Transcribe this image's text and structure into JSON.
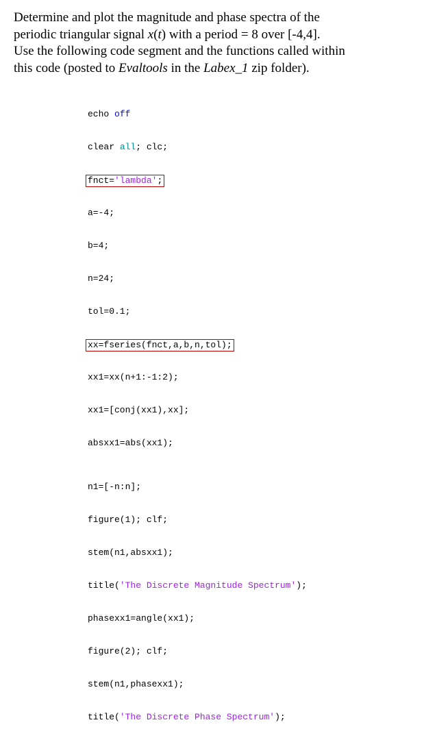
{
  "instructions": {
    "line1a": "Determine and plot the magnitude and phase spectra of the",
    "line2a": "periodic triangular signal ",
    "signal": "x",
    "line2b": "(",
    "tvar": "t",
    "line2c": ") with a period = 8 over [-4,4].",
    "line3a": "Use the following code segment and the functions called within",
    "line4a": "this code (posted to ",
    "evaltools": "Evaltools",
    "line4b": " in the ",
    "labex": "Labex_1",
    "line4c": " zip folder)."
  },
  "code": {
    "l1a": "echo ",
    "l1b": "off",
    "l2a": "clear ",
    "l2b": "all",
    "l2c": "; clc;",
    "l3a": "fnct=",
    "l3b": "'lambda'",
    "l3c": ";",
    "l4": "a=-4;",
    "l5": "b=4;",
    "l6": "n=24;",
    "l7": "tol=0.1;",
    "l8": "xx=fseries(fnct,a,b,n,tol);",
    "l9": "xx1=xx(n+1:-1:2);",
    "l10": "xx1=[conj(xx1),xx];",
    "l11": "absxx1=abs(xx1);",
    "l12": "n1=[-n:n];",
    "l13": "figure(1); clf;",
    "l14": "stem(n1,absxx1);",
    "l15a": "title(",
    "l15b": "'The Discrete Magnitude Spectrum'",
    "l15c": ");",
    "l16": "phasexx1=angle(xx1);",
    "l17": "figure(2); clf;",
    "l18": "stem(n1,phasexx1);",
    "l19a": "title(",
    "l19b": "'The Discrete Phase Spectrum'",
    "l19c": ");"
  }
}
